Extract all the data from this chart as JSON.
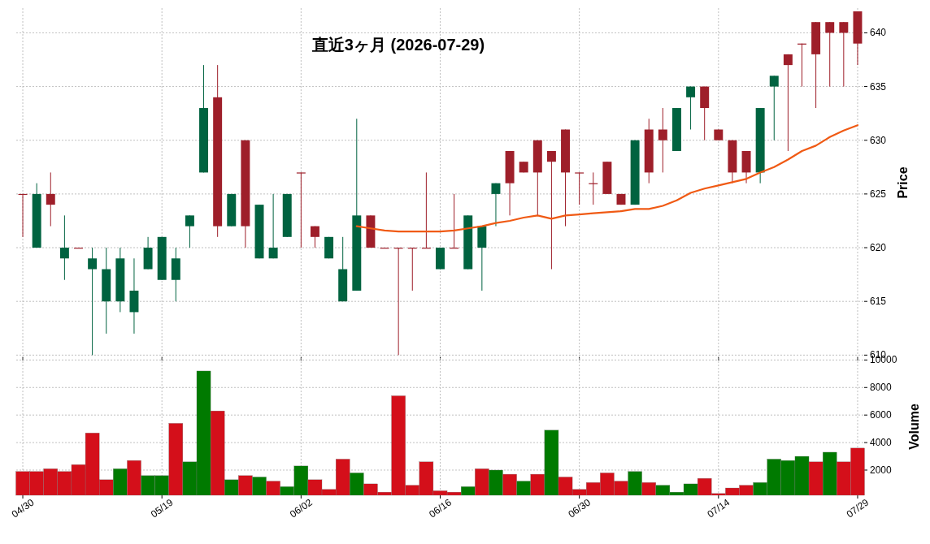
{
  "chart_data": [
    {
      "type": "candlestick",
      "title": "直近3ヶ月  (2026-07-29)",
      "ylabel": "Price",
      "grid": true,
      "tick_labels": "y",
      "categories": [
        null,
        null,
        null,
        null,
        null,
        null,
        null,
        null,
        null,
        null,
        null,
        null,
        null,
        null,
        null,
        null,
        null,
        null,
        null,
        null,
        null,
        null,
        null,
        null,
        null,
        null,
        null,
        null,
        null,
        null,
        null,
        null,
        null,
        null,
        null,
        null,
        null,
        null,
        null,
        null,
        null,
        null,
        null,
        null,
        null,
        null,
        null,
        null,
        null,
        null,
        null,
        null,
        null,
        null,
        null,
        null,
        null,
        null,
        null,
        null,
        null
      ],
      "ohlc": [
        [
          625,
          625,
          621,
          625
        ],
        [
          620,
          626,
          620,
          625
        ],
        [
          625,
          627,
          622,
          624
        ],
        [
          619,
          623,
          617,
          620
        ],
        [
          620,
          620,
          620,
          620
        ],
        [
          618,
          620,
          610,
          619
        ],
        [
          615,
          620,
          612,
          618
        ],
        [
          615,
          620,
          614,
          619
        ],
        [
          614,
          619,
          612,
          616
        ],
        [
          618,
          621,
          618,
          620
        ],
        [
          617,
          621,
          617,
          621
        ],
        [
          617,
          620,
          615,
          619
        ],
        [
          622,
          623,
          620,
          623
        ],
        [
          627,
          637,
          627,
          633
        ],
        [
          634,
          637,
          621,
          622
        ],
        [
          622,
          625,
          622,
          625
        ],
        [
          630,
          630,
          620,
          622
        ],
        [
          619,
          624,
          619,
          624
        ],
        [
          619,
          625,
          619,
          620
        ],
        [
          621,
          625,
          621,
          625
        ],
        [
          627,
          627,
          620,
          627
        ],
        [
          622,
          622,
          620,
          621
        ],
        [
          619,
          621,
          619,
          621
        ],
        [
          615,
          621,
          615,
          618
        ],
        [
          616,
          632,
          616,
          623
        ],
        [
          623,
          623,
          620,
          620
        ],
        [
          620,
          620,
          620,
          620
        ],
        [
          620,
          620,
          610,
          620
        ],
        [
          620,
          620,
          616,
          620
        ],
        [
          620,
          627,
          620,
          620
        ],
        [
          618,
          620,
          618,
          620
        ],
        [
          620,
          625,
          620,
          620
        ],
        [
          618,
          623,
          618,
          623
        ],
        [
          620,
          622,
          616,
          622
        ],
        [
          625,
          626,
          622,
          626
        ],
        [
          629,
          629,
          623,
          626
        ],
        [
          628,
          628,
          627,
          627
        ],
        [
          630,
          630,
          623,
          627
        ],
        [
          629,
          629,
          618,
          628
        ],
        [
          631,
          631,
          622,
          627
        ],
        [
          627,
          627,
          624,
          627
        ],
        [
          626,
          627,
          624,
          626
        ],
        [
          628,
          628,
          625,
          625
        ],
        [
          625,
          625,
          624,
          624
        ],
        [
          624,
          630,
          624,
          630
        ],
        [
          631,
          632,
          626,
          627
        ],
        [
          631,
          633,
          627,
          630
        ],
        [
          629,
          633,
          629,
          633
        ],
        [
          634,
          635,
          631,
          635
        ],
        [
          635,
          635,
          630,
          633
        ],
        [
          631,
          631,
          630,
          630
        ],
        [
          630,
          630,
          626,
          627
        ],
        [
          629,
          629,
          626,
          627
        ],
        [
          627,
          633,
          626,
          633
        ],
        [
          635,
          636,
          630,
          636
        ],
        [
          638,
          638,
          629,
          637
        ],
        [
          639,
          639,
          635,
          639
        ],
        [
          641,
          641,
          633,
          638
        ],
        [
          641,
          641,
          635,
          640
        ],
        [
          641,
          641,
          635,
          640
        ],
        [
          642,
          642,
          637,
          639
        ]
      ],
      "colors": [
        "#9e1f2a",
        "#006340",
        "#9e1f2a",
        "#006340",
        "#9e1f2a",
        "#006340",
        "#006340",
        "#006340",
        "#006340",
        "#006340",
        "#006340",
        "#006340",
        "#006340",
        "#006340",
        "#9e1f2a",
        "#006340",
        "#9e1f2a",
        "#006340",
        "#006340",
        "#006340",
        "#9e1f2a",
        "#9e1f2a",
        "#006340",
        "#006340",
        "#006340",
        "#9e1f2a",
        "#9e1f2a",
        "#9e1f2a",
        "#9e1f2a",
        "#9e1f2a",
        "#006340",
        "#9e1f2a",
        "#006340",
        "#006340",
        "#006340",
        "#9e1f2a",
        "#9e1f2a",
        "#9e1f2a",
        "#9e1f2a",
        "#9e1f2a",
        "#9e1f2a",
        "#9e1f2a",
        "#9e1f2a",
        "#9e1f2a",
        "#006340",
        "#9e1f2a",
        "#9e1f2a",
        "#006340",
        "#006340",
        "#9e1f2a",
        "#9e1f2a",
        "#9e1f2a",
        "#9e1f2a",
        "#006340",
        "#006340",
        "#9e1f2a",
        "#9e1f2a",
        "#9e1f2a",
        "#9e1f2a",
        "#9e1f2a",
        "#9e1f2a"
      ],
      "series": [
        {
          "type": "line",
          "color": "#f05a14",
          "values": [
            null,
            null,
            null,
            null,
            null,
            null,
            null,
            null,
            null,
            null,
            null,
            null,
            null,
            null,
            null,
            null,
            null,
            null,
            null,
            null,
            null,
            null,
            null,
            null,
            622.0,
            621.8,
            621.6,
            621.5,
            621.5,
            621.5,
            621.5,
            621.6,
            621.8,
            622.0,
            622.3,
            622.5,
            622.8,
            623.0,
            622.7,
            623.0,
            623.1,
            623.2,
            623.3,
            623.4,
            623.6,
            623.6,
            623.9,
            624.4,
            625.1,
            625.5,
            625.8,
            626.1,
            626.4,
            627.0,
            627.5,
            628.2,
            629.0,
            629.5,
            630.3,
            630.9,
            631.4
          ]
        }
      ],
      "ylim": [
        609.8,
        642.3
      ],
      "yticks": [
        610,
        615,
        620,
        625,
        630,
        635,
        640
      ]
    },
    {
      "type": "bar",
      "ylabel": "Volume",
      "grid": true,
      "categories": [
        "04/30",
        null,
        null,
        null,
        null,
        null,
        null,
        null,
        null,
        null,
        "05/19",
        null,
        null,
        null,
        null,
        null,
        null,
        null,
        null,
        null,
        "06/02",
        null,
        null,
        null,
        null,
        null,
        null,
        null,
        null,
        null,
        "06/16",
        null,
        null,
        null,
        null,
        null,
        null,
        null,
        null,
        null,
        "06/30",
        null,
        null,
        null,
        null,
        null,
        null,
        null,
        null,
        null,
        "07/14",
        null,
        null,
        null,
        null,
        null,
        null,
        null,
        null,
        null,
        "07/29"
      ],
      "values": [
        1900,
        1900,
        2100,
        1900,
        2400,
        4700,
        1300,
        2100,
        2700,
        1600,
        1600,
        5400,
        2600,
        9200,
        6300,
        1300,
        1600,
        1500,
        1200,
        800,
        2300,
        1300,
        600,
        2800,
        1800,
        1000,
        400,
        7400,
        900,
        2600,
        500,
        400,
        800,
        2100,
        2000,
        1700,
        1200,
        1700,
        4900,
        1500,
        600,
        1100,
        1800,
        1200,
        1900,
        1100,
        900,
        400,
        1000,
        1400,
        300,
        700,
        900,
        1100,
        2800,
        2700,
        3000,
        2600,
        3300,
        2600,
        3600
      ],
      "colors": [
        "#d40f1a",
        "#d40f1a",
        "#d40f1a",
        "#d40f1a",
        "#d40f1a",
        "#d40f1a",
        "#d40f1a",
        "#007a00",
        "#d40f1a",
        "#007a00",
        "#007a00",
        "#d40f1a",
        "#007a00",
        "#007a00",
        "#d40f1a",
        "#007a00",
        "#d40f1a",
        "#007a00",
        "#d40f1a",
        "#007a00",
        "#007a00",
        "#d40f1a",
        "#d40f1a",
        "#d40f1a",
        "#007a00",
        "#d40f1a",
        "#d40f1a",
        "#d40f1a",
        "#d40f1a",
        "#d40f1a",
        "#d40f1a",
        "#d40f1a",
        "#007a00",
        "#d40f1a",
        "#007a00",
        "#d40f1a",
        "#007a00",
        "#d40f1a",
        "#007a00",
        "#d40f1a",
        "#d40f1a",
        "#d40f1a",
        "#d40f1a",
        "#d40f1a",
        "#007a00",
        "#d40f1a",
        "#007a00",
        "#007a00",
        "#007a00",
        "#d40f1a",
        "#d40f1a",
        "#d40f1a",
        "#d40f1a",
        "#007a00",
        "#007a00",
        "#007a00",
        "#007a00",
        "#d40f1a",
        "#007a00",
        "#d40f1a",
        "#d40f1a"
      ],
      "ylim": [
        170,
        10140
      ],
      "yticks": [
        2000,
        4000,
        6000,
        8000,
        10000
      ]
    }
  ]
}
